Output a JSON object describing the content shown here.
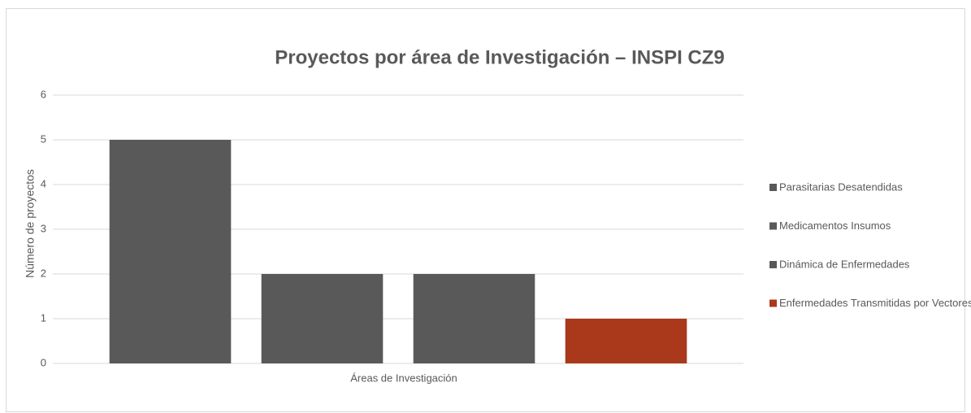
{
  "chart_data": {
    "type": "bar",
    "title": "Proyectos por área de Investigación – INSPI CZ9",
    "x_label": "Áreas de Investigación",
    "y_label": "Número de proyectos",
    "categories": [
      "Áreas de Investigación"
    ],
    "series": [
      {
        "name": "Parasitarias Desatendidas",
        "color": "#595959",
        "values": [
          5
        ]
      },
      {
        "name": "Medicamentos Insumos",
        "color": "#595959",
        "values": [
          2
        ]
      },
      {
        "name": "Dinámica de Enfermedades",
        "color": "#595959",
        "values": [
          2
        ]
      },
      {
        "name": "Enfermedades Transmitidas por Vectores",
        "color": "#a9391a",
        "values": [
          1
        ]
      }
    ],
    "ylim": [
      0,
      6
    ],
    "yticks": [
      0,
      1,
      2,
      3,
      4,
      5,
      6
    ],
    "grid": true,
    "legend": "right"
  }
}
